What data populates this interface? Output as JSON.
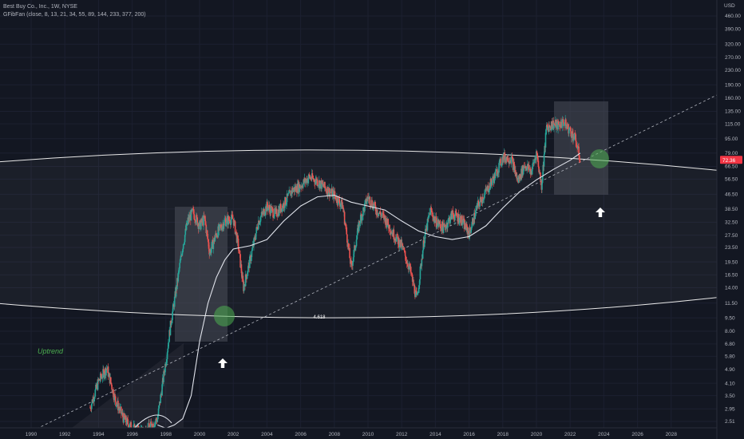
{
  "header": {
    "title": "Best Buy Co., Inc., 1W, NYSE",
    "indicator": "GFibFan (close, 8, 13, 21, 34, 55, 89, 144, 233, 377, 200)"
  },
  "colors": {
    "background": "#131722",
    "candle_up": "#26a69a",
    "candle_down": "#ef5350",
    "ma_line": "#e0e3eb",
    "arc_line": "#e8e8e8",
    "highlight_box": "#4a4e5a",
    "green_marker": "#4caf50",
    "price_tag": "#f23645",
    "uptrend_text": "#4caf50"
  },
  "chart_data": {
    "type": "line",
    "scale": "log",
    "currency": "USD",
    "x_ticks": [
      "1990",
      "1992",
      "1994",
      "1996",
      "1998",
      "2000",
      "2002",
      "2004",
      "2006",
      "2008",
      "2010",
      "2012",
      "2014",
      "2016",
      "2018",
      "2020",
      "2022",
      "2024",
      "2026",
      "2028"
    ],
    "y_ticks": [
      "460.00",
      "390.00",
      "320.00",
      "270.00",
      "230.00",
      "190.00",
      "160.00",
      "135.00",
      "115.00",
      "95.00",
      "79.00",
      "66.50",
      "56.50",
      "46.50",
      "38.50",
      "32.50",
      "27.50",
      "23.50",
      "19.50",
      "16.50",
      "14.00",
      "11.50",
      "9.50",
      "8.00",
      "6.80",
      "5.80",
      "4.90",
      "4.10",
      "3.50",
      "2.95",
      "2.51"
    ],
    "last_price": "72.36",
    "annotations": {
      "arc_label": "4.618",
      "trend_label": "Uptrend"
    },
    "series": [
      {
        "name": "close",
        "x": [
          1993.5,
          1994.0,
          1994.5,
          1995.0,
          1995.5,
          1996.0,
          1996.5,
          1997.0,
          1997.5,
          1998.0,
          1998.3,
          1998.6,
          1999.0,
          1999.3,
          1999.6,
          2000.0,
          2000.3,
          2000.6,
          2001.0,
          2001.5,
          2002.0,
          2002.3,
          2002.6,
          2003.0,
          2003.5,
          2004.0,
          2004.5,
          2005.0,
          2005.5,
          2006.0,
          2006.5,
          2007.0,
          2007.5,
          2008.0,
          2008.5,
          2008.8,
          2009.0,
          2009.5,
          2010.0,
          2010.5,
          2011.0,
          2011.5,
          2012.0,
          2012.5,
          2012.9,
          2013.3,
          2013.7,
          2014.0,
          2014.5,
          2015.0,
          2015.5,
          2016.0,
          2016.5,
          2017.0,
          2017.5,
          2018.0,
          2018.5,
          2018.9,
          2019.3,
          2019.7,
          2020.0,
          2020.3,
          2020.6,
          2021.0,
          2021.3,
          2021.6,
          2022.0,
          2022.3,
          2022.6
        ],
        "close": [
          3.0,
          4.2,
          5.0,
          3.3,
          2.6,
          2.3,
          2.2,
          2.3,
          2.6,
          5.5,
          9.0,
          13.5,
          24.0,
          33.0,
          37.0,
          31.0,
          34.0,
          22.0,
          28.0,
          33.0,
          34.0,
          24.0,
          14.0,
          20.0,
          33.0,
          40.0,
          36.0,
          41.0,
          49.0,
          52.0,
          58.0,
          55.0,
          50.0,
          46.0,
          40.0,
          25.0,
          18.0,
          33.0,
          45.0,
          38.0,
          34.0,
          28.0,
          24.0,
          17.5,
          12.0,
          25.0,
          38.0,
          33.0,
          30.0,
          36.0,
          34.0,
          28.0,
          40.0,
          48.0,
          58.0,
          75.0,
          74.0,
          55.0,
          68.0,
          62.0,
          80.0,
          52.0,
          110.0,
          115.0,
          112.0,
          118.0,
          105.0,
          95.0,
          72.36
        ]
      },
      {
        "name": "200 MA",
        "x": [
          1997.5,
          1998.0,
          1998.5,
          1999.0,
          1999.5,
          2000.0,
          2000.5,
          2001.0,
          2001.5,
          2002.0,
          2003.0,
          2004.0,
          2005.0,
          2006.0,
          2007.0,
          2008.0,
          2009.0,
          2010.0,
          2011.0,
          2012.0,
          2013.0,
          2014.0,
          2015.0,
          2016.0,
          2017.0,
          2018.0,
          2019.0,
          2020.0,
          2021.0,
          2022.0,
          2022.6
        ],
        "close": [
          2.4,
          2.3,
          2.4,
          2.6,
          3.5,
          7.0,
          11.5,
          16.0,
          20.0,
          23.0,
          24.0,
          26.0,
          33.0,
          40.0,
          45.0,
          46.0,
          42.0,
          40.0,
          38.0,
          33.0,
          29.0,
          27.0,
          26.0,
          27.0,
          31.0,
          39.0,
          48.0,
          56.0,
          64.0,
          72.0,
          79.0
        ]
      }
    ]
  }
}
